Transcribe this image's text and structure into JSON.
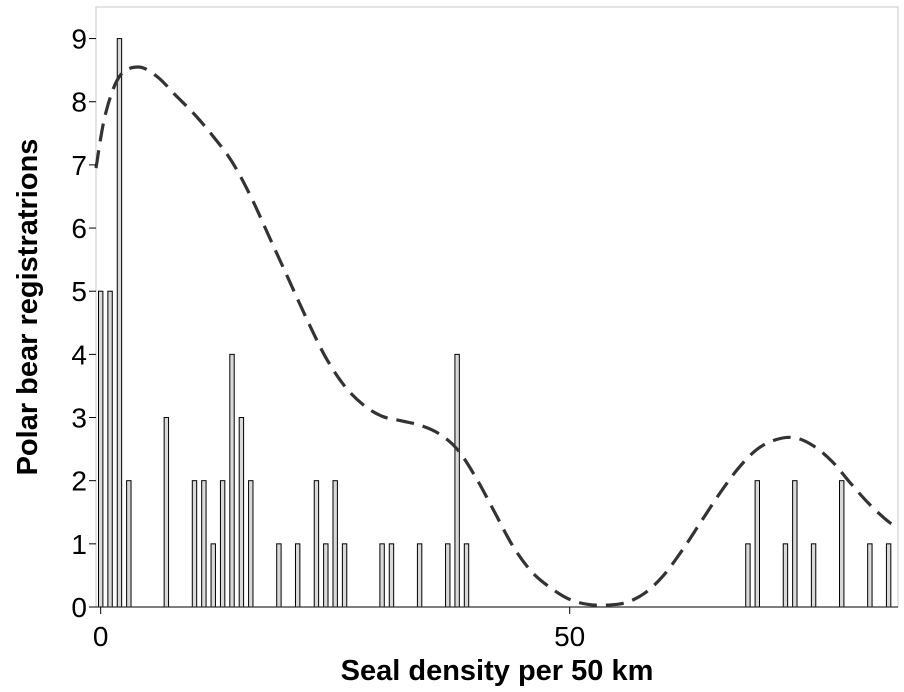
{
  "chart_data": {
    "type": "bar",
    "title": "",
    "xlabel": "Seal density per 50 km",
    "ylabel": "Polar bear registratrions",
    "xlim": [
      -0.5,
      85
    ],
    "ylim": [
      0,
      9.5
    ],
    "xticks": [
      0,
      50
    ],
    "yticks": [
      0,
      1,
      2,
      3,
      4,
      5,
      6,
      7,
      8,
      9
    ],
    "grid": false,
    "legend": "none",
    "colors": {
      "bar_fill": "#d9d9d9",
      "bar_edge": "#000000",
      "curve": "#333333"
    },
    "bars": {
      "name": "",
      "x": [
        0,
        1,
        2,
        3,
        7,
        10,
        11,
        12,
        13,
        14,
        15,
        16,
        19,
        21,
        23,
        24,
        25,
        26,
        30,
        31,
        34,
        37,
        38,
        39,
        69,
        70,
        73,
        74,
        76,
        79,
        82,
        84
      ],
      "values": [
        5,
        5,
        9,
        2,
        3,
        2,
        2,
        1,
        2,
        4,
        3,
        2,
        1,
        1,
        2,
        1,
        2,
        1,
        1,
        1,
        1,
        1,
        4,
        1,
        1,
        2,
        1,
        2,
        1,
        2,
        1,
        1
      ]
    },
    "curve": {
      "name": "",
      "style": "dashed",
      "x": [
        -0.5,
        0.5,
        2,
        4,
        6,
        8,
        10,
        12,
        14,
        16,
        18,
        20,
        22,
        24,
        26,
        28,
        30,
        32,
        34,
        36,
        38,
        40,
        42,
        44,
        46,
        48,
        50,
        52,
        54,
        56,
        58,
        60,
        62,
        64,
        66,
        68,
        70,
        72,
        74,
        76,
        78,
        80,
        82,
        84,
        85
      ],
      "y": [
        6.95,
        7.8,
        8.4,
        8.55,
        8.4,
        8.1,
        7.8,
        7.45,
        7.05,
        6.5,
        5.85,
        5.2,
        4.55,
        3.95,
        3.5,
        3.2,
        3.02,
        2.95,
        2.88,
        2.75,
        2.5,
        2.05,
        1.5,
        0.95,
        0.55,
        0.3,
        0.12,
        0.04,
        0.03,
        0.07,
        0.22,
        0.5,
        0.9,
        1.35,
        1.8,
        2.2,
        2.5,
        2.65,
        2.68,
        2.55,
        2.3,
        1.95,
        1.62,
        1.35,
        1.27
      ]
    }
  }
}
